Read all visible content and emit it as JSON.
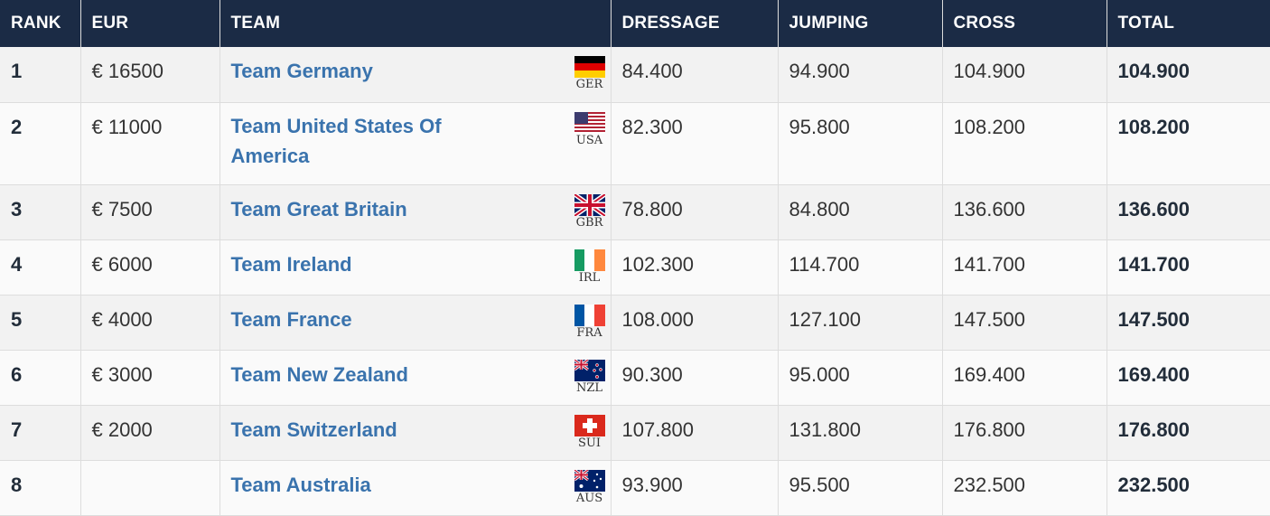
{
  "headers": [
    "RANK",
    "EUR",
    "TEAM",
    "DRESSAGE",
    "JUMPING",
    "CROSS",
    "TOTAL"
  ],
  "rows": [
    {
      "rank": "1",
      "eur": "€ 16500",
      "team": "Team Germany",
      "code": "GER",
      "dressage": "84.400",
      "jumping": "94.900",
      "cross": "104.900",
      "total": "104.900"
    },
    {
      "rank": "2",
      "eur": "€ 11000",
      "team": "Team United States Of America",
      "code": "USA",
      "dressage": "82.300",
      "jumping": "95.800",
      "cross": "108.200",
      "total": "108.200"
    },
    {
      "rank": "3",
      "eur": "€ 7500",
      "team": "Team Great Britain",
      "code": "GBR",
      "dressage": "78.800",
      "jumping": "84.800",
      "cross": "136.600",
      "total": "136.600"
    },
    {
      "rank": "4",
      "eur": "€ 6000",
      "team": "Team Ireland",
      "code": "IRL",
      "dressage": "102.300",
      "jumping": "114.700",
      "cross": "141.700",
      "total": "141.700"
    },
    {
      "rank": "5",
      "eur": "€ 4000",
      "team": "Team France",
      "code": "FRA",
      "dressage": "108.000",
      "jumping": "127.100",
      "cross": "147.500",
      "total": "147.500"
    },
    {
      "rank": "6",
      "eur": "€ 3000",
      "team": "Team New Zealand",
      "code": "NZL",
      "dressage": "90.300",
      "jumping": "95.000",
      "cross": "169.400",
      "total": "169.400"
    },
    {
      "rank": "7",
      "eur": "€ 2000",
      "team": "Team Switzerland",
      "code": "SUI",
      "dressage": "107.800",
      "jumping": "131.800",
      "cross": "176.800",
      "total": "176.800"
    },
    {
      "rank": "8",
      "eur": "",
      "team": "Team Australia",
      "code": "AUS",
      "dressage": "93.900",
      "jumping": "95.500",
      "cross": "232.500",
      "total": "232.500"
    }
  ],
  "flag_icons": [
    "germany-flag-icon",
    "usa-flag-icon",
    "great-britain-flag-icon",
    "ireland-flag-icon",
    "france-flag-icon",
    "new-zealand-flag-icon",
    "switzerland-flag-icon",
    "australia-flag-icon"
  ],
  "colors": {
    "header_bg": "#1b2b45",
    "header_text": "#ffffff",
    "link": "#3a73ad",
    "row_odd": "#f2f2f2",
    "row_even": "#fafafa"
  }
}
